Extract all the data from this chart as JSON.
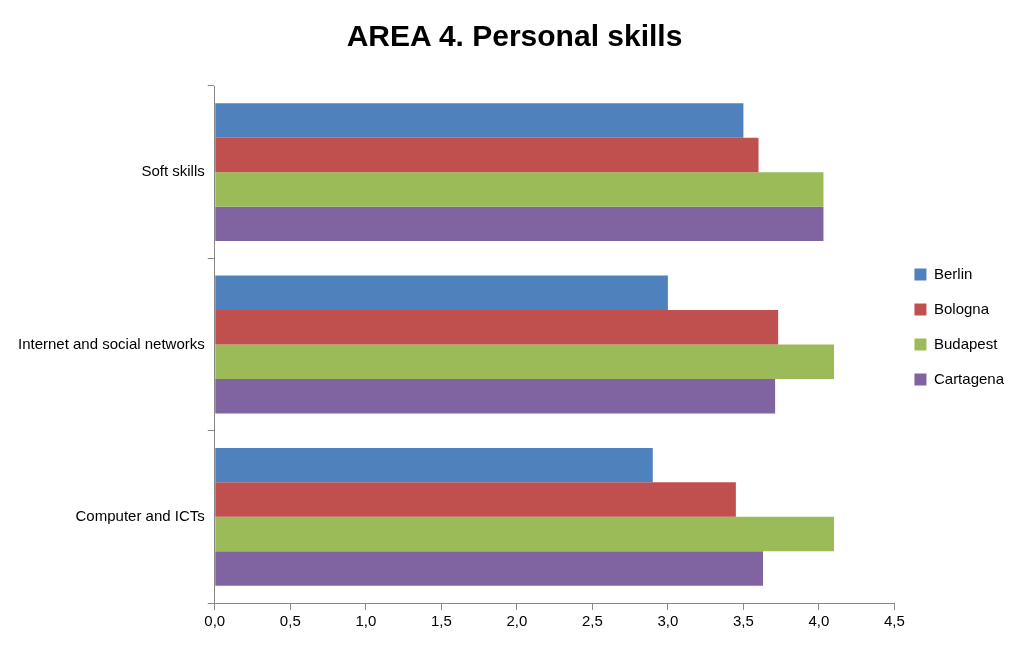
{
  "chart_data": {
    "type": "bar",
    "orientation": "horizontal",
    "title": "AREA 4. Personal skills",
    "categories": [
      "Soft skills",
      "Internet and social networks",
      "Computer and ICTs"
    ],
    "series": [
      {
        "name": "Berlin",
        "color": "#4f81bd",
        "values": [
          3.5,
          3.0,
          2.9
        ]
      },
      {
        "name": "Bologna",
        "color": "#c0504d",
        "values": [
          3.6,
          3.73,
          3.45
        ]
      },
      {
        "name": "Budapest",
        "color": "#9bbb59",
        "values": [
          4.03,
          4.1,
          4.1
        ]
      },
      {
        "name": "Cartagena",
        "color": "#8064a2",
        "values": [
          4.03,
          3.71,
          3.63
        ]
      }
    ],
    "xlim": [
      0,
      4.5
    ],
    "xticks": [
      {
        "value": 0,
        "label": "0,0"
      },
      {
        "value": 0.5,
        "label": "0,5"
      },
      {
        "value": 1,
        "label": "1,0"
      },
      {
        "value": 1.5,
        "label": "1,5"
      },
      {
        "value": 2,
        "label": "2,0"
      },
      {
        "value": 2.5,
        "label": "2,5"
      },
      {
        "value": 3,
        "label": "3,0"
      },
      {
        "value": 3.5,
        "label": "3,5"
      },
      {
        "value": 4,
        "label": "4,0"
      },
      {
        "value": 4.5,
        "label": "4,5"
      }
    ],
    "grid": false,
    "legend": "right"
  }
}
